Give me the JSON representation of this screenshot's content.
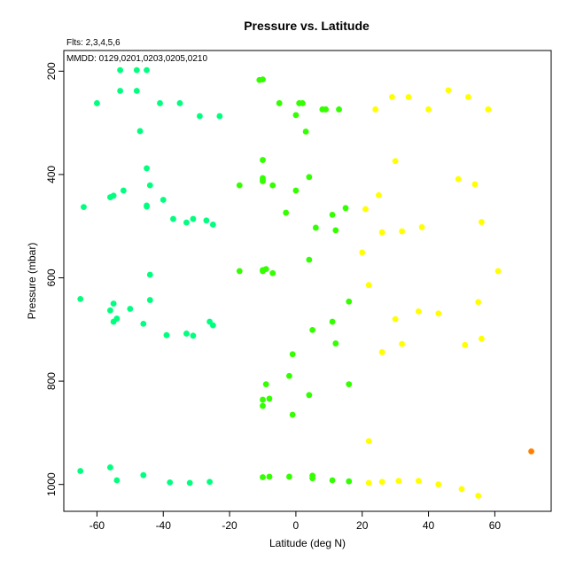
{
  "chart_data": {
    "type": "scatter",
    "title": "Pressure vs. Latitude",
    "annotations": [
      "Flts: 2,3,4,5,6",
      "MMDD: 0129,0201,0203,0205,0210"
    ],
    "xlabel": "Latitude (deg N)",
    "ylabel": "Pressure (mbar)",
    "xlim": [
      -70,
      77
    ],
    "ylim": [
      1052,
      160
    ],
    "y_reversed": true,
    "grid": false,
    "legend": "none",
    "x_ticks": [
      -60,
      -40,
      -20,
      0,
      20,
      40,
      60
    ],
    "y_ticks": [
      200,
      400,
      600,
      800,
      1000
    ],
    "series": [
      {
        "color": "#00ff7f",
        "points": [
          [
            -53,
            198
          ],
          [
            -48,
            198
          ],
          [
            -45,
            198
          ],
          [
            -53,
            238
          ],
          [
            -48,
            238
          ],
          [
            -60,
            262
          ],
          [
            -41,
            262
          ],
          [
            -35,
            262
          ],
          [
            -29,
            287
          ],
          [
            -23,
            287
          ],
          [
            -47,
            316
          ],
          [
            -45,
            388
          ],
          [
            -44,
            421
          ],
          [
            -52,
            431
          ],
          [
            -55,
            441
          ],
          [
            -56,
            444
          ],
          [
            -64,
            463
          ],
          [
            -45,
            460
          ],
          [
            -45,
            462
          ],
          [
            -40,
            449
          ],
          [
            -37,
            486
          ],
          [
            -33,
            493
          ],
          [
            -31,
            486
          ],
          [
            -27,
            489
          ],
          [
            -25,
            497
          ],
          [
            -44,
            594
          ],
          [
            -65,
            641
          ],
          [
            -44,
            643
          ],
          [
            -55,
            650
          ],
          [
            -50,
            660
          ],
          [
            -56,
            663
          ],
          [
            -54,
            679
          ],
          [
            -55,
            685
          ],
          [
            -46,
            689
          ],
          [
            -26,
            685
          ],
          [
            -25,
            692
          ],
          [
            -39,
            711
          ],
          [
            -33,
            708
          ],
          [
            -31,
            712
          ],
          [
            -65,
            974
          ],
          [
            -56,
            967
          ],
          [
            -54,
            992
          ],
          [
            -46,
            982
          ],
          [
            -38,
            996
          ],
          [
            -32,
            997
          ],
          [
            -26,
            995
          ]
        ]
      },
      {
        "color": "#33ff00",
        "points": [
          [
            -10,
            216
          ],
          [
            -11,
            217
          ],
          [
            -5,
            262
          ],
          [
            1,
            262
          ],
          [
            2,
            262
          ],
          [
            0,
            285
          ],
          [
            8,
            274
          ],
          [
            9,
            274
          ],
          [
            13,
            274
          ],
          [
            3,
            317
          ],
          [
            -10,
            372
          ],
          [
            -10,
            407
          ],
          [
            -10,
            411
          ],
          [
            -10,
            413
          ],
          [
            -7,
            421
          ],
          [
            -17,
            421
          ],
          [
            0,
            431
          ],
          [
            4,
            405
          ],
          [
            -3,
            474
          ],
          [
            11,
            478
          ],
          [
            15,
            465
          ],
          [
            6,
            503
          ],
          [
            12,
            508
          ],
          [
            -17,
            587
          ],
          [
            -10,
            585
          ],
          [
            -9,
            583
          ],
          [
            -7,
            591
          ],
          [
            -10,
            587
          ],
          [
            4,
            565
          ],
          [
            16,
            646
          ],
          [
            11,
            685
          ],
          [
            5,
            701
          ],
          [
            12,
            727
          ],
          [
            -1,
            748
          ],
          [
            -2,
            790
          ],
          [
            -9,
            806
          ],
          [
            16,
            806
          ],
          [
            4,
            827
          ],
          [
            -10,
            836
          ],
          [
            -8,
            834
          ],
          [
            -10,
            848
          ],
          [
            -1,
            865
          ],
          [
            -10,
            986
          ],
          [
            -8,
            985
          ],
          [
            -2,
            985
          ],
          [
            5,
            983
          ],
          [
            5,
            988
          ],
          [
            11,
            992
          ],
          [
            16,
            994
          ]
        ]
      },
      {
        "color": "#ffff00",
        "points": [
          [
            29,
            250
          ],
          [
            34,
            250
          ],
          [
            46,
            237
          ],
          [
            52,
            250
          ],
          [
            24,
            274
          ],
          [
            40,
            274
          ],
          [
            58,
            274
          ],
          [
            30,
            374
          ],
          [
            49,
            409
          ],
          [
            54,
            419
          ],
          [
            25,
            440
          ],
          [
            21,
            467
          ],
          [
            26,
            512
          ],
          [
            32,
            510
          ],
          [
            38,
            502
          ],
          [
            56,
            492
          ],
          [
            20,
            551
          ],
          [
            61,
            587
          ],
          [
            22,
            614
          ],
          [
            55,
            647
          ],
          [
            37,
            665
          ],
          [
            43,
            669
          ],
          [
            30,
            680
          ],
          [
            32,
            728
          ],
          [
            51,
            730
          ],
          [
            56,
            718
          ],
          [
            26,
            744
          ],
          [
            22,
            916
          ],
          [
            22,
            997
          ],
          [
            26,
            995
          ],
          [
            31,
            993
          ],
          [
            37,
            993
          ],
          [
            43,
            1000
          ],
          [
            50,
            1009
          ],
          [
            55,
            1022
          ]
        ]
      },
      {
        "color": "#ff8000",
        "points": [
          [
            71,
            936
          ]
        ]
      }
    ]
  }
}
